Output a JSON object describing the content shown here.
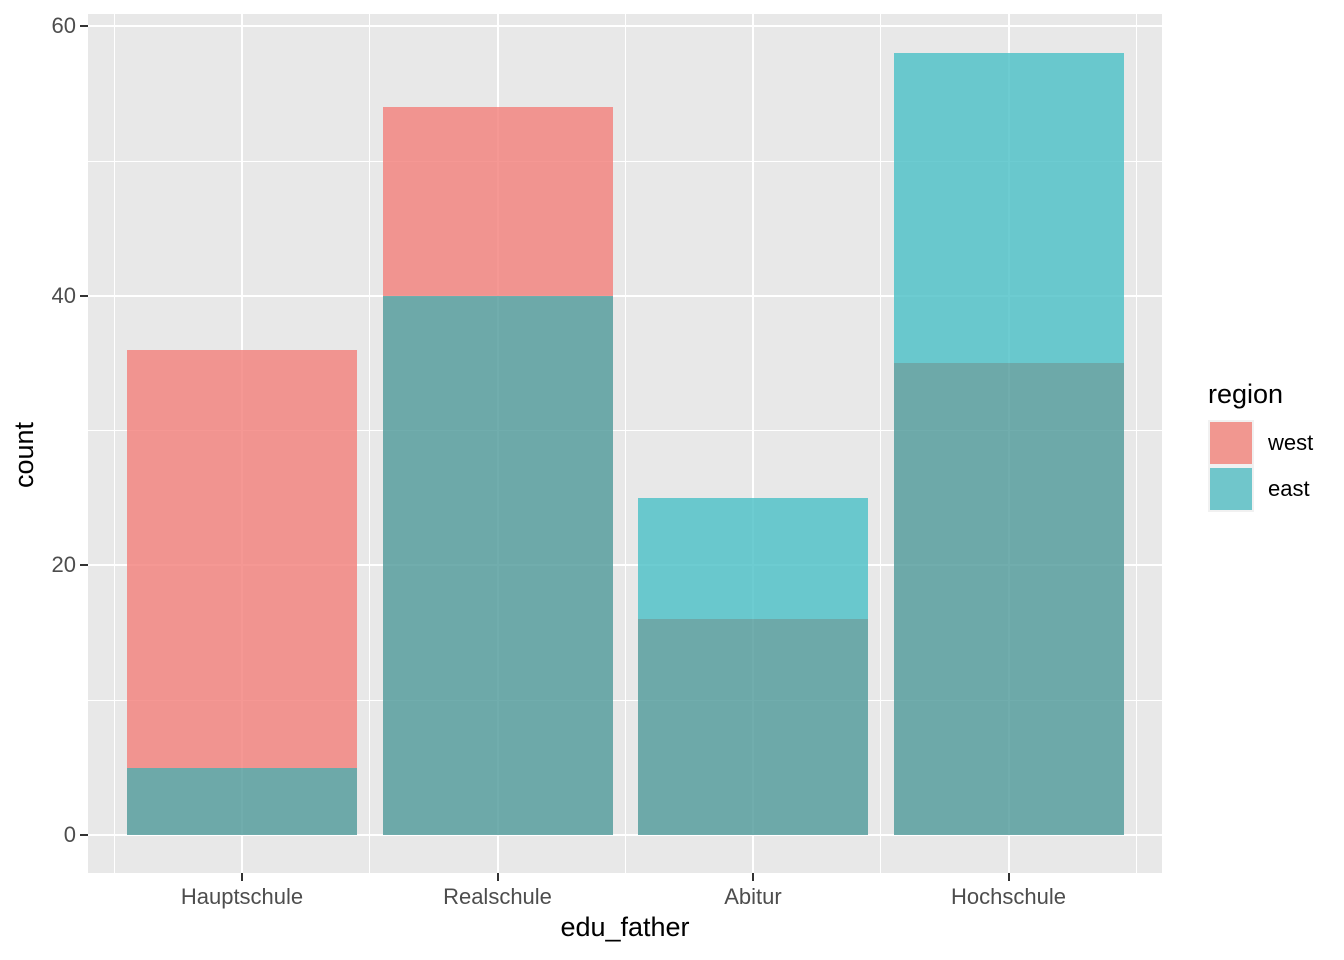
{
  "figure": {
    "background": "#ffffff",
    "panel_bg": "#e8e8e8",
    "grid_color": "#ffffff",
    "tick_mark_color": "#333333",
    "tick_label_color": "#4d4d4d",
    "title_color": "#000000"
  },
  "chart_data": {
    "type": "bar",
    "variant": "overlaid-identity-alpha",
    "title": "",
    "xlabel": "edu_father",
    "ylabel": "count",
    "categories": [
      "Hauptschule",
      "Realschule",
      "Abitur",
      "Hochschule"
    ],
    "series": [
      {
        "name": "west",
        "values": [
          36,
          54,
          16,
          35
        ]
      },
      {
        "name": "east",
        "values": [
          5,
          40,
          25,
          58
        ]
      }
    ],
    "ylim": [
      0,
      60
    ],
    "yticks": [
      0,
      20,
      40,
      60
    ],
    "yticks_minor": [
      10,
      30,
      50
    ],
    "grid": "major-and-minor-white",
    "legend": {
      "title": "region",
      "position": "right",
      "entries": [
        {
          "label": "west",
          "swatch_color": "#f19790"
        },
        {
          "label": "east",
          "swatch_color": "#70c6cb"
        }
      ]
    },
    "render_colors": {
      "west_only": "rgba(242,126,121,0.8)",
      "east_only": "rgba(73,191,197,0.8)",
      "overlap": "rgba(77,153,153,0.8)"
    }
  }
}
